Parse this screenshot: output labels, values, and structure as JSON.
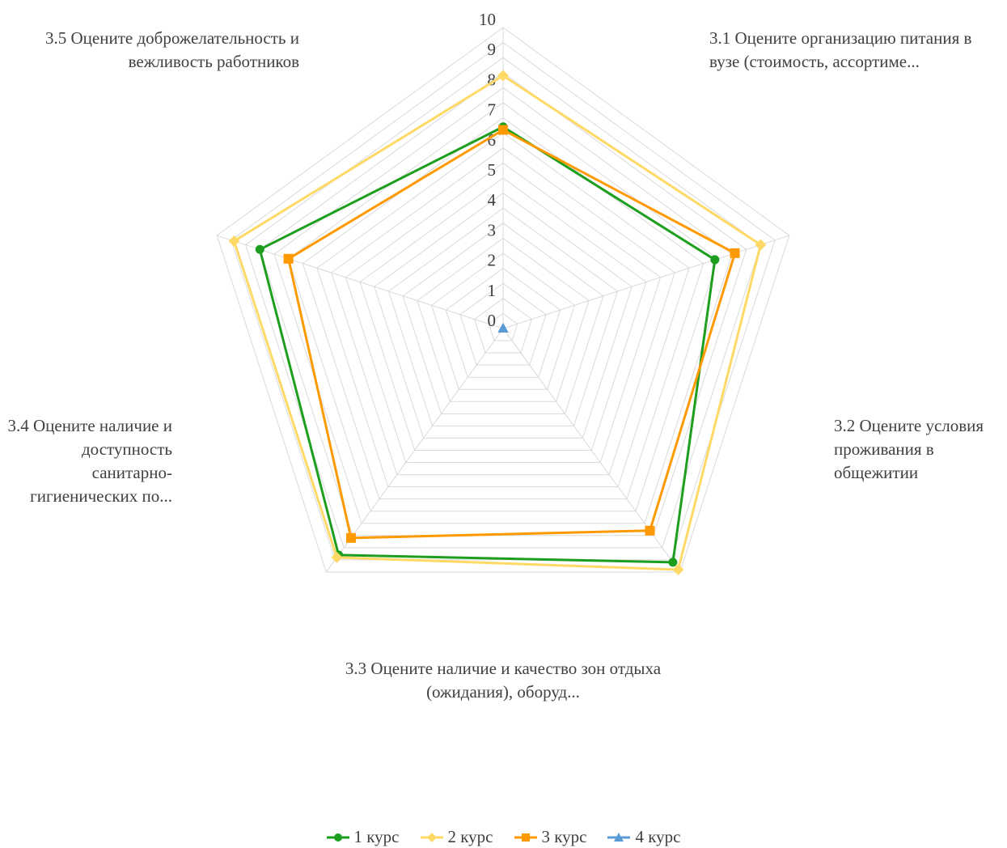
{
  "chart_data": {
    "type": "radar",
    "axes": [
      "3.1 Оцените организацию питания в вузе (стоимость, ассортиме...",
      "3.2 Оцените условия проживания в общежитии",
      "3.3 Оцените наличие и качество зон отдыха (ожидания), оборуд...",
      "3.4 Оцените наличие и доступность санитарно-гигиенических по...",
      "3.5 Оцените доброжелательность и вежливость работников"
    ],
    "r_ticks": [
      "0",
      "1",
      "2",
      "3",
      "4",
      "5",
      "6",
      "7",
      "8",
      "9",
      "10"
    ],
    "r_range": [
      0,
      10
    ],
    "grid": true,
    "legend_position": "bottom",
    "series": [
      {
        "name": "1 курс",
        "values": [
          6.7,
          7.4,
          9.6,
          9.3,
          8.5
        ],
        "color": "#1e9e1e",
        "marker": "circle"
      },
      {
        "name": "2 курс",
        "values": [
          8.4,
          9.0,
          9.9,
          9.4,
          9.4
        ],
        "color": "#ffd966",
        "marker": "diamond"
      },
      {
        "name": "3 курс",
        "values": [
          6.6,
          8.1,
          8.3,
          8.6,
          7.5
        ],
        "color": "#ff9900",
        "marker": "square"
      },
      {
        "name": "4 курс",
        "values": [
          0,
          0,
          0,
          0,
          0
        ],
        "color": "#5b9bd5",
        "marker": "triangle"
      }
    ]
  }
}
